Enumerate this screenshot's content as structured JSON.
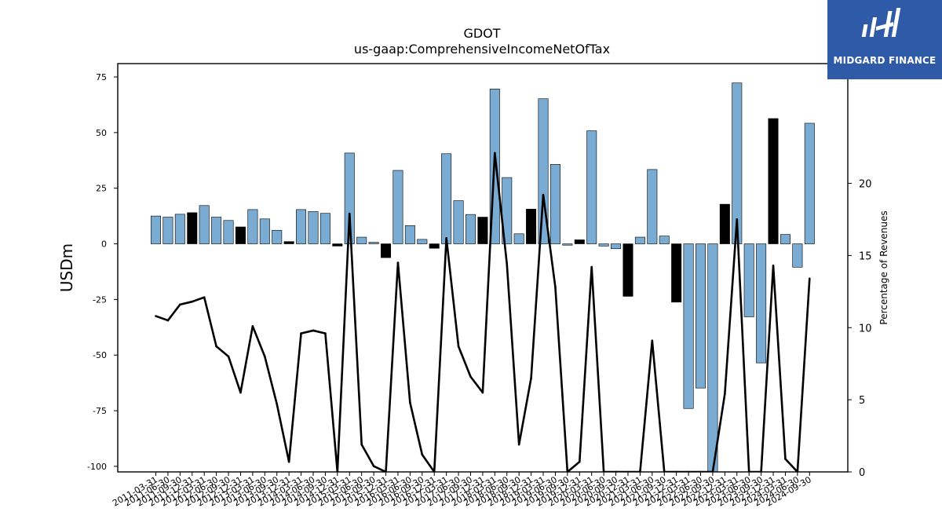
{
  "chart_data": {
    "type": "bar",
    "title": "GDOT",
    "subtitle": "us-gaap:ComprehensiveIncomeNetOfTax",
    "ylabel": "USDm",
    "y2label": "Percentage of Revenues",
    "ylim": [
      -102.5,
      81
    ],
    "y2lim": [
      0,
      28.3
    ],
    "yticks": [
      75,
      50,
      25,
      0,
      -25,
      -50,
      -75,
      -100
    ],
    "y2ticks": [
      20,
      15,
      10,
      5,
      0
    ],
    "bar_colors": {
      "positive_series": "#7aabd3",
      "negative_highlight": "#000000"
    },
    "line_color": "#000000",
    "categories": [
      "2011-03-31",
      "2011-06-30",
      "2011-09-30",
      "2011-12-31",
      "2012-03-31",
      "2012-06-30",
      "2012-09-30",
      "2012-12-31",
      "2013-03-31",
      "2013-06-30",
      "2013-09-30",
      "2013-12-31",
      "2014-03-31",
      "2014-06-30",
      "2014-09-30",
      "2014-12-31",
      "2015-03-31",
      "2015-06-30",
      "2015-09-30",
      "2015-12-31",
      "2016-03-31",
      "2016-06-30",
      "2016-09-30",
      "2016-12-31",
      "2017-03-31",
      "2017-06-30",
      "2017-09-30",
      "2017-12-31",
      "2018-03-31",
      "2018-06-30",
      "2018-09-30",
      "2018-12-31",
      "2019-03-31",
      "2019-06-30",
      "2019-09-30",
      "2019-12-31",
      "2020-03-31",
      "2020-06-30",
      "2020-09-30",
      "2020-12-31",
      "2021-03-31",
      "2021-06-30",
      "2021-09-30",
      "2021-12-31",
      "2022-03-31",
      "2022-06-30",
      "2022-09-30",
      "2022-12-31",
      "2023-03-31",
      "2023-06-30",
      "2023-09-30",
      "2023-12-31",
      "2024-03-31",
      "2024-06-30",
      "2024-09-30"
    ],
    "values": [
      12.5,
      12,
      13.3,
      14,
      17.2,
      12,
      10.5,
      7.6,
      15.4,
      11.2,
      6.1,
      1,
      15.4,
      14.5,
      13.7,
      -1,
      40.8,
      3,
      0.7,
      -6.2,
      33,
      8.2,
      2,
      -2,
      40.5,
      19.4,
      13.2,
      12,
      69.6,
      29.8,
      4.5,
      15.6,
      65.2,
      35.7,
      -0.6,
      1.8,
      50.8,
      -1,
      -2.2,
      -23.6,
      3,
      33.4,
      3.5,
      -26.2,
      -74,
      -64.8,
      -102.5,
      17.8,
      72.3,
      -32.8,
      -53.5,
      56.3,
      4.2,
      -10.5,
      54.2
    ],
    "bar_highlight": [
      false,
      false,
      false,
      true,
      false,
      false,
      false,
      true,
      false,
      false,
      false,
      true,
      false,
      false,
      false,
      true,
      false,
      false,
      false,
      true,
      false,
      false,
      false,
      true,
      false,
      false,
      false,
      true,
      false,
      false,
      false,
      true,
      false,
      false,
      false,
      true,
      false,
      false,
      false,
      true,
      false,
      false,
      false,
      true,
      false,
      false,
      false,
      true,
      false,
      false,
      false,
      true,
      false,
      false,
      false
    ],
    "line_series": {
      "values": [
        10.8,
        10.5,
        11.6,
        11.8,
        12.1,
        8.7,
        8,
        5.5,
        10.1,
        8,
        4.7,
        0.7,
        9.6,
        9.8,
        9.6,
        0,
        17.9,
        1.9,
        0.4,
        0,
        14.5,
        4.8,
        1.2,
        0,
        16.2,
        8.7,
        6.6,
        5.5,
        22.1,
        14.4,
        1.9,
        6.5,
        19.2,
        12.8,
        0,
        0.7,
        14.2,
        0,
        0,
        0,
        0,
        9.1,
        0,
        0,
        0,
        0,
        0,
        5.4,
        17.5,
        0,
        0,
        14.3,
        0.9,
        0,
        13.4
      ]
    }
  },
  "logo": {
    "text": "MIDGARD FINANCE"
  }
}
